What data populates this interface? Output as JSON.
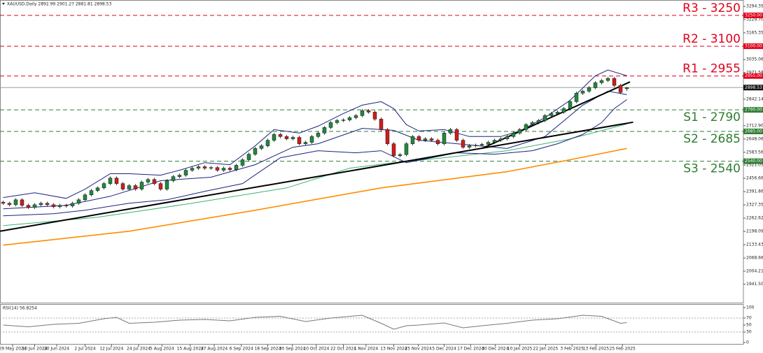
{
  "chart_data": [
    {
      "type": "candlestick",
      "title": "XAUUSD,Daily 2892.99 2901.27 2881.81 2898.53",
      "xlim": [
        -0.5,
        117.5
      ],
      "ylim": [
        1851,
        3325
      ],
      "yticks": [
        3294.35,
        {
          "value": 3229.7,
          "label": "3229.70"
        },
        3165.35,
        3035.06,
        2971.58,
        2842.14,
        {
          "value": 2712.9,
          "label": "2712.90"
        },
        2648.06,
        2583.56,
        2521.05,
        2456.66,
        2391.86,
        2327.35,
        2262.62,
        2198.09,
        2133.43,
        2068.66,
        2004.21,
        {
          "value": 1941.5,
          "label": "1941.50"
        }
      ],
      "xticks": [
        {
          "value": 1.5,
          "label": "29 May 2024"
        },
        {
          "value": 5,
          "label": "10 Jun 2024"
        },
        {
          "value": 8.5,
          "label": "20 Jun 2024"
        },
        {
          "value": 13,
          "label": "2 Jul 2024"
        },
        {
          "value": 17.2,
          "label": "12 Jul 2024"
        },
        {
          "value": 21.5,
          "label": "24 Jul 2024"
        },
        {
          "value": 25.2,
          "label": "5 Aug 2024"
        },
        {
          "value": 29.7,
          "label": "15 Aug 2024"
        },
        {
          "value": 33.5,
          "label": "27 Aug 2024"
        },
        {
          "value": 37.8,
          "label": "6 Sep 2024"
        },
        {
          "value": 42,
          "label": "18 Sep 2024"
        },
        {
          "value": 45.9,
          "label": "30 Sep 2024"
        },
        {
          "value": 49.7,
          "label": "10 Oct 2024"
        },
        {
          "value": 54,
          "label": "22 Oct 2024"
        },
        {
          "value": 57.6,
          "label": "1 Nov 2024"
        },
        {
          "value": 62,
          "label": "13 Nov 2024"
        },
        {
          "value": 65.9,
          "label": "25 Nov 2024"
        },
        {
          "value": 70,
          "label": "5 Dec 2024"
        },
        {
          "value": 74.2,
          "label": "17 Dec 2024"
        },
        {
          "value": 78.1,
          "label": "30 Dec 2024"
        },
        {
          "value": 82,
          "label": "10 Jan 2025"
        },
        {
          "value": 86.1,
          "label": "22 Jan 2025"
        },
        {
          "value": 90.3,
          "label": "3 Feb 2025"
        },
        {
          "value": 94.1,
          "label": "13 Feb 2025"
        },
        {
          "value": 98.3,
          "label": "25 Feb 2025"
        }
      ],
      "up_color": "#1f8a3c",
      "down_color": "#d01c1c",
      "open": [
        2340,
        2335,
        2328,
        2352,
        2325,
        2315,
        2328,
        2335,
        2328,
        2318,
        2325,
        2322,
        2335,
        2352,
        2376,
        2397,
        2410,
        2431,
        2458,
        2431,
        2404,
        2421,
        2404,
        2438,
        2451,
        2431,
        2404,
        2445,
        2465,
        2472,
        2496,
        2506,
        2513,
        2506,
        2509,
        2496,
        2506,
        2499,
        2520,
        2547,
        2574,
        2602,
        2615,
        2642,
        2670,
        2660,
        2649,
        2656,
        2625,
        2632,
        2660,
        2677,
        2704,
        2728,
        2738,
        2741,
        2752,
        2762,
        2786,
        2779,
        2745,
        2694,
        2625,
        2567,
        2572,
        2625,
        2660,
        2642,
        2649,
        2642,
        2625,
        2677,
        2694,
        2642,
        2608,
        2615,
        2618,
        2622,
        2632,
        2642,
        2649,
        2660,
        2677,
        2694,
        2718,
        2728,
        2738,
        2762,
        2772,
        2779,
        2796,
        2830,
        2871,
        2881,
        2898,
        2922,
        2933,
        2943,
        2909,
        2892.99
      ],
      "high": [
        2348,
        2343,
        2360,
        2360,
        2333,
        2336,
        2343,
        2343,
        2336,
        2333,
        2333,
        2343,
        2360,
        2384,
        2405,
        2418,
        2439,
        2466,
        2466,
        2439,
        2429,
        2429,
        2446,
        2459,
        2459,
        2439,
        2453,
        2473,
        2480,
        2504,
        2514,
        2521,
        2521,
        2517,
        2517,
        2514,
        2514,
        2528,
        2555,
        2582,
        2610,
        2623,
        2650,
        2678,
        2678,
        2668,
        2664,
        2664,
        2640,
        2668,
        2685,
        2712,
        2736,
        2746,
        2749,
        2760,
        2770,
        2794,
        2794,
        2787,
        2753,
        2702,
        2633,
        2580,
        2633,
        2668,
        2668,
        2657,
        2657,
        2650,
        2685,
        2702,
        2702,
        2650,
        2623,
        2626,
        2630,
        2640,
        2650,
        2657,
        2668,
        2685,
        2702,
        2726,
        2736,
        2746,
        2770,
        2780,
        2787,
        2804,
        2838,
        2879,
        2889,
        2906,
        2930,
        2941,
        2951,
        2951,
        2917,
        2901.27
      ],
      "low": [
        2327,
        2320,
        2320,
        2317,
        2307,
        2307,
        2320,
        2320,
        2310,
        2310,
        2314,
        2314,
        2327,
        2344,
        2368,
        2389,
        2402,
        2423,
        2423,
        2396,
        2396,
        2396,
        2396,
        2430,
        2423,
        2396,
        2396,
        2437,
        2457,
        2464,
        2488,
        2498,
        2498,
        2498,
        2488,
        2488,
        2491,
        2491,
        2512,
        2539,
        2566,
        2594,
        2607,
        2634,
        2652,
        2641,
        2641,
        2617,
        2617,
        2624,
        2652,
        2669,
        2696,
        2720,
        2730,
        2733,
        2744,
        2754,
        2771,
        2737,
        2686,
        2617,
        2559,
        2559,
        2564,
        2617,
        2634,
        2634,
        2634,
        2617,
        2617,
        2669,
        2634,
        2600,
        2600,
        2607,
        2610,
        2614,
        2624,
        2634,
        2641,
        2652,
        2669,
        2686,
        2710,
        2720,
        2730,
        2754,
        2764,
        2771,
        2788,
        2822,
        2863,
        2873,
        2890,
        2914,
        2925,
        2901,
        2867,
        2881.81
      ],
      "close": [
        2335,
        2328,
        2352,
        2325,
        2315,
        2328,
        2335,
        2328,
        2318,
        2325,
        2322,
        2335,
        2352,
        2376,
        2397,
        2410,
        2431,
        2458,
        2431,
        2404,
        2421,
        2404,
        2438,
        2451,
        2431,
        2404,
        2445,
        2465,
        2472,
        2496,
        2506,
        2513,
        2506,
        2509,
        2496,
        2506,
        2499,
        2520,
        2547,
        2574,
        2602,
        2615,
        2642,
        2670,
        2660,
        2649,
        2656,
        2625,
        2632,
        2660,
        2677,
        2704,
        2728,
        2738,
        2741,
        2752,
        2762,
        2786,
        2779,
        2745,
        2694,
        2625,
        2567,
        2572,
        2625,
        2660,
        2642,
        2649,
        2642,
        2625,
        2677,
        2694,
        2642,
        2608,
        2615,
        2618,
        2622,
        2632,
        2642,
        2649,
        2660,
        2677,
        2694,
        2718,
        2728,
        2738,
        2762,
        2772,
        2779,
        2796,
        2830,
        2871,
        2881,
        2898,
        2922,
        2933,
        2943,
        2909,
        2875,
        2898.53
      ],
      "lines": [
        {
          "color": "#ff8c00",
          "width": 1.6,
          "x": [
            0,
            20,
            40,
            60,
            80,
            90,
            99
          ],
          "values": [
            2131,
            2199,
            2301,
            2410,
            2489,
            2547,
            2602
          ]
        },
        {
          "color": "#3cb371",
          "width": 1,
          "x": [
            0,
            15,
            30,
            45,
            55,
            62,
            70,
            80,
            90,
            99
          ],
          "values": [
            2226,
            2267,
            2335,
            2410,
            2506,
            2533,
            2557,
            2591,
            2649,
            2721
          ]
        },
        {
          "color": "#1a237e",
          "width": 1,
          "x": [
            0,
            5,
            10,
            13,
            17,
            20,
            25,
            28,
            32,
            36,
            40,
            43,
            47,
            50,
            54,
            57,
            60,
            62,
            64,
            66,
            70,
            74,
            79,
            82,
            86,
            90,
            94,
            96,
            99
          ],
          "values": [
            2363,
            2386,
            2359,
            2404,
            2479,
            2479,
            2472,
            2496,
            2533,
            2523,
            2615,
            2694,
            2677,
            2711,
            2772,
            2813,
            2830,
            2796,
            2718,
            2687,
            2694,
            2660,
            2660,
            2687,
            2752,
            2837,
            2956,
            2984,
            2956
          ]
        },
        {
          "color": "#1a237e",
          "width": 1,
          "x": [
            0,
            10,
            17,
            25,
            33,
            40,
            46,
            50,
            57,
            62,
            66,
            72,
            80,
            86,
            92,
            96,
            99
          ],
          "values": [
            2308,
            2325,
            2369,
            2445,
            2462,
            2523,
            2608,
            2625,
            2700,
            2690,
            2642,
            2625,
            2602,
            2660,
            2813,
            2881,
            2864
          ]
        },
        {
          "color": "#1a237e",
          "width": 1,
          "x": [
            0,
            8,
            13,
            20,
            26,
            32,
            38,
            44,
            50,
            56,
            60,
            64,
            68,
            72,
            78,
            84,
            88,
            92,
            95,
            97,
            99
          ],
          "values": [
            2274,
            2284,
            2301,
            2335,
            2352,
            2393,
            2431,
            2557,
            2591,
            2581,
            2591,
            2533,
            2557,
            2581,
            2574,
            2591,
            2625,
            2670,
            2728,
            2796,
            2840
          ]
        },
        {
          "color": "#000000",
          "width": 2,
          "x": [
            -0.5,
            100
          ],
          "values": [
            2199,
            2730
          ]
        },
        {
          "color": "#000000",
          "width": 2,
          "x": [
            76,
            99.5
          ],
          "values": [
            2602,
            2926
          ]
        }
      ],
      "levels": [
        {
          "label": "R3 - 3250",
          "value": 3250,
          "tag": "3250.00",
          "color": "#e0001b"
        },
        {
          "label": "R2 - 3100",
          "value": 3100,
          "tag": "3100.00",
          "color": "#e0001b"
        },
        {
          "label": "R1 - 2955",
          "value": 2955,
          "tag": "2955.00",
          "color": "#e0001b"
        },
        {
          "label": "S1 - 2790",
          "value": 2790,
          "tag": "2790.00",
          "color": "#2e7d32"
        },
        {
          "label": "S2 - 2685",
          "value": 2685,
          "tag": "2685.00",
          "color": "#2e7d32"
        },
        {
          "label": "S3 - 2540",
          "value": 2540,
          "tag": "2540.00",
          "color": "#2e7d32"
        }
      ],
      "last_price": 2898.53
    },
    {
      "type": "line",
      "title": "RSI(14) 56.8254",
      "xlim": [
        -0.5,
        117.5
      ],
      "ylim": [
        0,
        100
      ],
      "yticks": [
        0,
        30,
        50,
        70,
        100
      ],
      "levels": [
        70,
        30
      ],
      "color": "#777777",
      "x": [
        0,
        4,
        8,
        12,
        16,
        18,
        20,
        24,
        28,
        32,
        36,
        40,
        44,
        48,
        52,
        57,
        60,
        62,
        64,
        66,
        70,
        73,
        76,
        80,
        84,
        88,
        92,
        95,
        98,
        99
      ],
      "values": [
        50,
        45,
        52,
        55,
        68,
        72,
        55,
        58,
        64,
        66,
        62,
        72,
        75,
        60,
        70,
        78,
        55,
        38,
        48,
        50,
        56,
        42,
        48,
        55,
        64,
        68,
        78,
        75,
        55,
        57
      ]
    }
  ]
}
